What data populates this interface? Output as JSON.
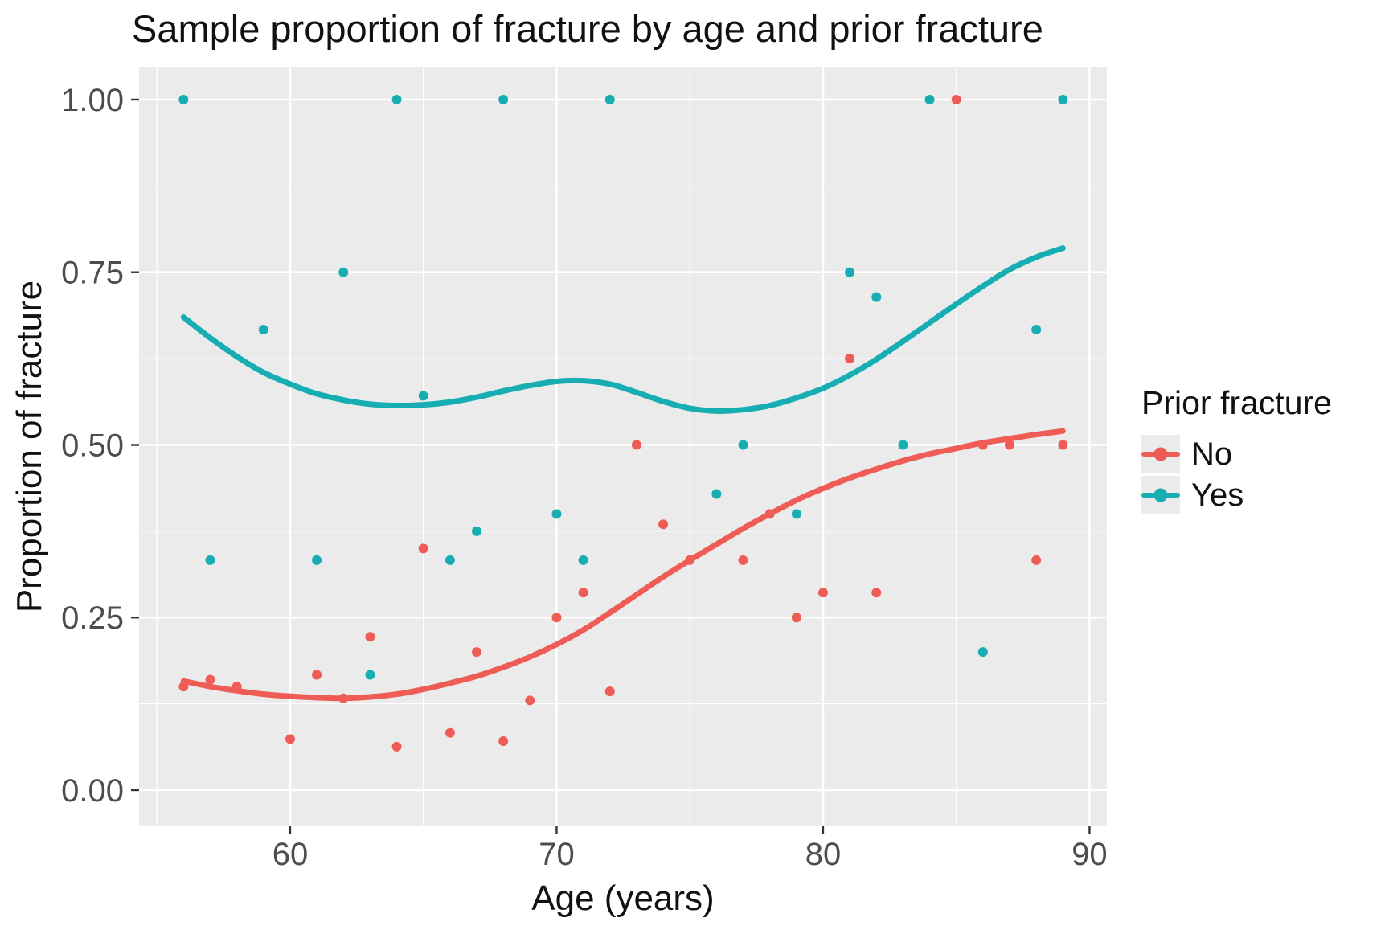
{
  "chart_data": {
    "type": "scatter",
    "title": "Sample proportion of fracture by age and prior fracture",
    "xlabel": "Age (years)",
    "ylabel": "Proportion of fracture",
    "xlim": [
      54.33,
      90.65
    ],
    "ylim": [
      -0.0524,
      1.0477
    ],
    "x_ticks": [
      60,
      70,
      80,
      90
    ],
    "x_tick_labels": [
      "60",
      "70",
      "80",
      "90"
    ],
    "x_minor": [
      55,
      65,
      75,
      85
    ],
    "y_ticks": [
      0,
      0.25,
      0.5,
      0.75,
      1.0
    ],
    "y_tick_labels": [
      "0.00",
      "0.25",
      "0.50",
      "0.75",
      "1.00"
    ],
    "y_minor": [
      0.125,
      0.375,
      0.625,
      0.875
    ],
    "grid": true,
    "panel_bg": "#EBEBEB",
    "grid_color": "#FFFFFF",
    "tick_color": "#333333",
    "tick_label_color": "#4D4D4D",
    "legend": {
      "title": "Prior fracture",
      "position": "right",
      "entries": [
        {
          "label": "No",
          "color": "#EF5C56"
        },
        {
          "label": "Yes",
          "color": "#16ADB3"
        }
      ]
    },
    "series": [
      {
        "name": "No",
        "color": "#EF5C56",
        "points": [
          [
            56,
            0.15
          ],
          [
            57,
            0.16
          ],
          [
            58,
            0.15
          ],
          [
            60,
            0.074
          ],
          [
            61,
            0.167
          ],
          [
            62,
            0.133
          ],
          [
            63,
            0.222
          ],
          [
            64,
            0.063
          ],
          [
            65,
            0.35
          ],
          [
            66,
            0.083
          ],
          [
            67,
            0.2
          ],
          [
            68,
            0.071
          ],
          [
            69,
            0.13
          ],
          [
            70,
            0.25
          ],
          [
            71,
            0.286
          ],
          [
            72,
            0.143
          ],
          [
            73,
            0.5
          ],
          [
            74,
            0.385
          ],
          [
            75,
            0.333
          ],
          [
            77,
            0.333
          ],
          [
            78,
            0.4
          ],
          [
            79,
            0.25
          ],
          [
            80,
            0.286
          ],
          [
            81,
            0.625
          ],
          [
            82,
            0.286
          ],
          [
            85,
            1.0
          ],
          [
            86,
            0.5
          ],
          [
            87,
            0.5
          ],
          [
            88,
            0.333
          ],
          [
            89,
            0.5
          ]
        ],
        "smooth": [
          [
            56,
            0.158
          ],
          [
            57,
            0.15
          ],
          [
            58,
            0.144
          ],
          [
            59,
            0.139
          ],
          [
            60,
            0.136
          ],
          [
            61,
            0.134
          ],
          [
            62,
            0.133
          ],
          [
            63,
            0.135
          ],
          [
            64,
            0.139
          ],
          [
            65,
            0.146
          ],
          [
            66,
            0.155
          ],
          [
            67,
            0.165
          ],
          [
            68,
            0.178
          ],
          [
            69,
            0.193
          ],
          [
            70,
            0.211
          ],
          [
            71,
            0.232
          ],
          [
            72,
            0.257
          ],
          [
            73,
            0.283
          ],
          [
            74,
            0.309
          ],
          [
            75,
            0.333
          ],
          [
            76,
            0.356
          ],
          [
            77,
            0.379
          ],
          [
            78,
            0.4
          ],
          [
            79,
            0.42
          ],
          [
            80,
            0.437
          ],
          [
            81,
            0.452
          ],
          [
            82,
            0.465
          ],
          [
            83,
            0.477
          ],
          [
            84,
            0.487
          ],
          [
            85,
            0.495
          ],
          [
            86,
            0.503
          ],
          [
            87,
            0.509
          ],
          [
            88,
            0.515
          ],
          [
            89,
            0.52
          ]
        ]
      },
      {
        "name": "Yes",
        "color": "#16ADB3",
        "points": [
          [
            56,
            1.0
          ],
          [
            57,
            0.333
          ],
          [
            59,
            0.667
          ],
          [
            61,
            0.333
          ],
          [
            62,
            0.75
          ],
          [
            63,
            0.167
          ],
          [
            64,
            1.0
          ],
          [
            65,
            0.571
          ],
          [
            66,
            0.333
          ],
          [
            67,
            0.375
          ],
          [
            68,
            1.0
          ],
          [
            70,
            0.4
          ],
          [
            71,
            0.333
          ],
          [
            72,
            1.0
          ],
          [
            76,
            0.429
          ],
          [
            77,
            0.5
          ],
          [
            79,
            0.4
          ],
          [
            81,
            0.75
          ],
          [
            82,
            0.714
          ],
          [
            83,
            0.5
          ],
          [
            84,
            1.0
          ],
          [
            86,
            0.2
          ],
          [
            88,
            0.667
          ],
          [
            89,
            1.0
          ]
        ],
        "smooth": [
          [
            56,
            0.685
          ],
          [
            57,
            0.655
          ],
          [
            58,
            0.628
          ],
          [
            59,
            0.605
          ],
          [
            60,
            0.588
          ],
          [
            61,
            0.574
          ],
          [
            62,
            0.565
          ],
          [
            63,
            0.559
          ],
          [
            64,
            0.557
          ],
          [
            65,
            0.558
          ],
          [
            66,
            0.562
          ],
          [
            67,
            0.569
          ],
          [
            68,
            0.578
          ],
          [
            69,
            0.586
          ],
          [
            70,
            0.592
          ],
          [
            71,
            0.593
          ],
          [
            72,
            0.588
          ],
          [
            73,
            0.576
          ],
          [
            74,
            0.563
          ],
          [
            75,
            0.553
          ],
          [
            76,
            0.549
          ],
          [
            77,
            0.551
          ],
          [
            78,
            0.557
          ],
          [
            79,
            0.568
          ],
          [
            80,
            0.582
          ],
          [
            81,
            0.601
          ],
          [
            82,
            0.624
          ],
          [
            83,
            0.65
          ],
          [
            84,
            0.677
          ],
          [
            85,
            0.704
          ],
          [
            86,
            0.73
          ],
          [
            87,
            0.754
          ],
          [
            88,
            0.772
          ],
          [
            89,
            0.785
          ]
        ]
      }
    ]
  }
}
